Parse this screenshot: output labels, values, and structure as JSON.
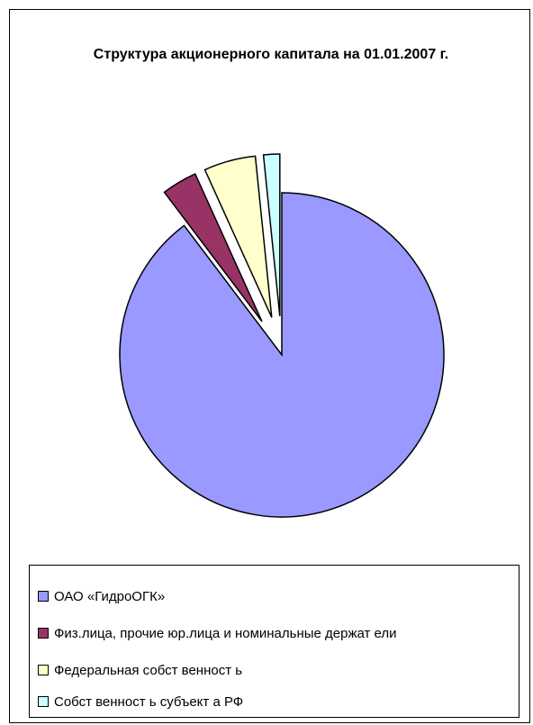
{
  "chart_data": {
    "type": "pie",
    "title": "Структура акционерного капитала на 01.01.2007 г.",
    "exploded": true,
    "legend_position": "bottom",
    "series": [
      {
        "name": "ОАО  «ГидроОГК»",
        "value": 88.8,
        "color": "#9999ff"
      },
      {
        "name": "Физ.лица, прочие юр.лица и номинальные держат ели",
        "value": 3.5,
        "color": "#993366"
      },
      {
        "name": "Федеральная собст венност ь",
        "value": 5.1,
        "color": "#ffffcc"
      },
      {
        "name": "Собст венност ь субъект а РФ",
        "value": 1.6,
        "color": "#ccffff"
      }
    ]
  }
}
